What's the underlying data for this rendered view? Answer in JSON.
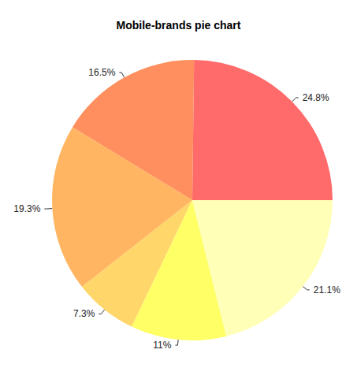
{
  "chart_data": {
    "type": "pie",
    "title": "Mobile-brands pie chart",
    "values": [
      24.8,
      16.5,
      19.3,
      7.3,
      11,
      21.1
    ],
    "value_labels": [
      "24.8%",
      "16.5%",
      "19.3%",
      "7.3%",
      "11%",
      "21.1%"
    ],
    "colors": [
      "#ff6b6b",
      "#ff8f5e",
      "#ffb562",
      "#ffd66a",
      "#ffff66",
      "#ffffb8"
    ],
    "data_labels": true
  }
}
